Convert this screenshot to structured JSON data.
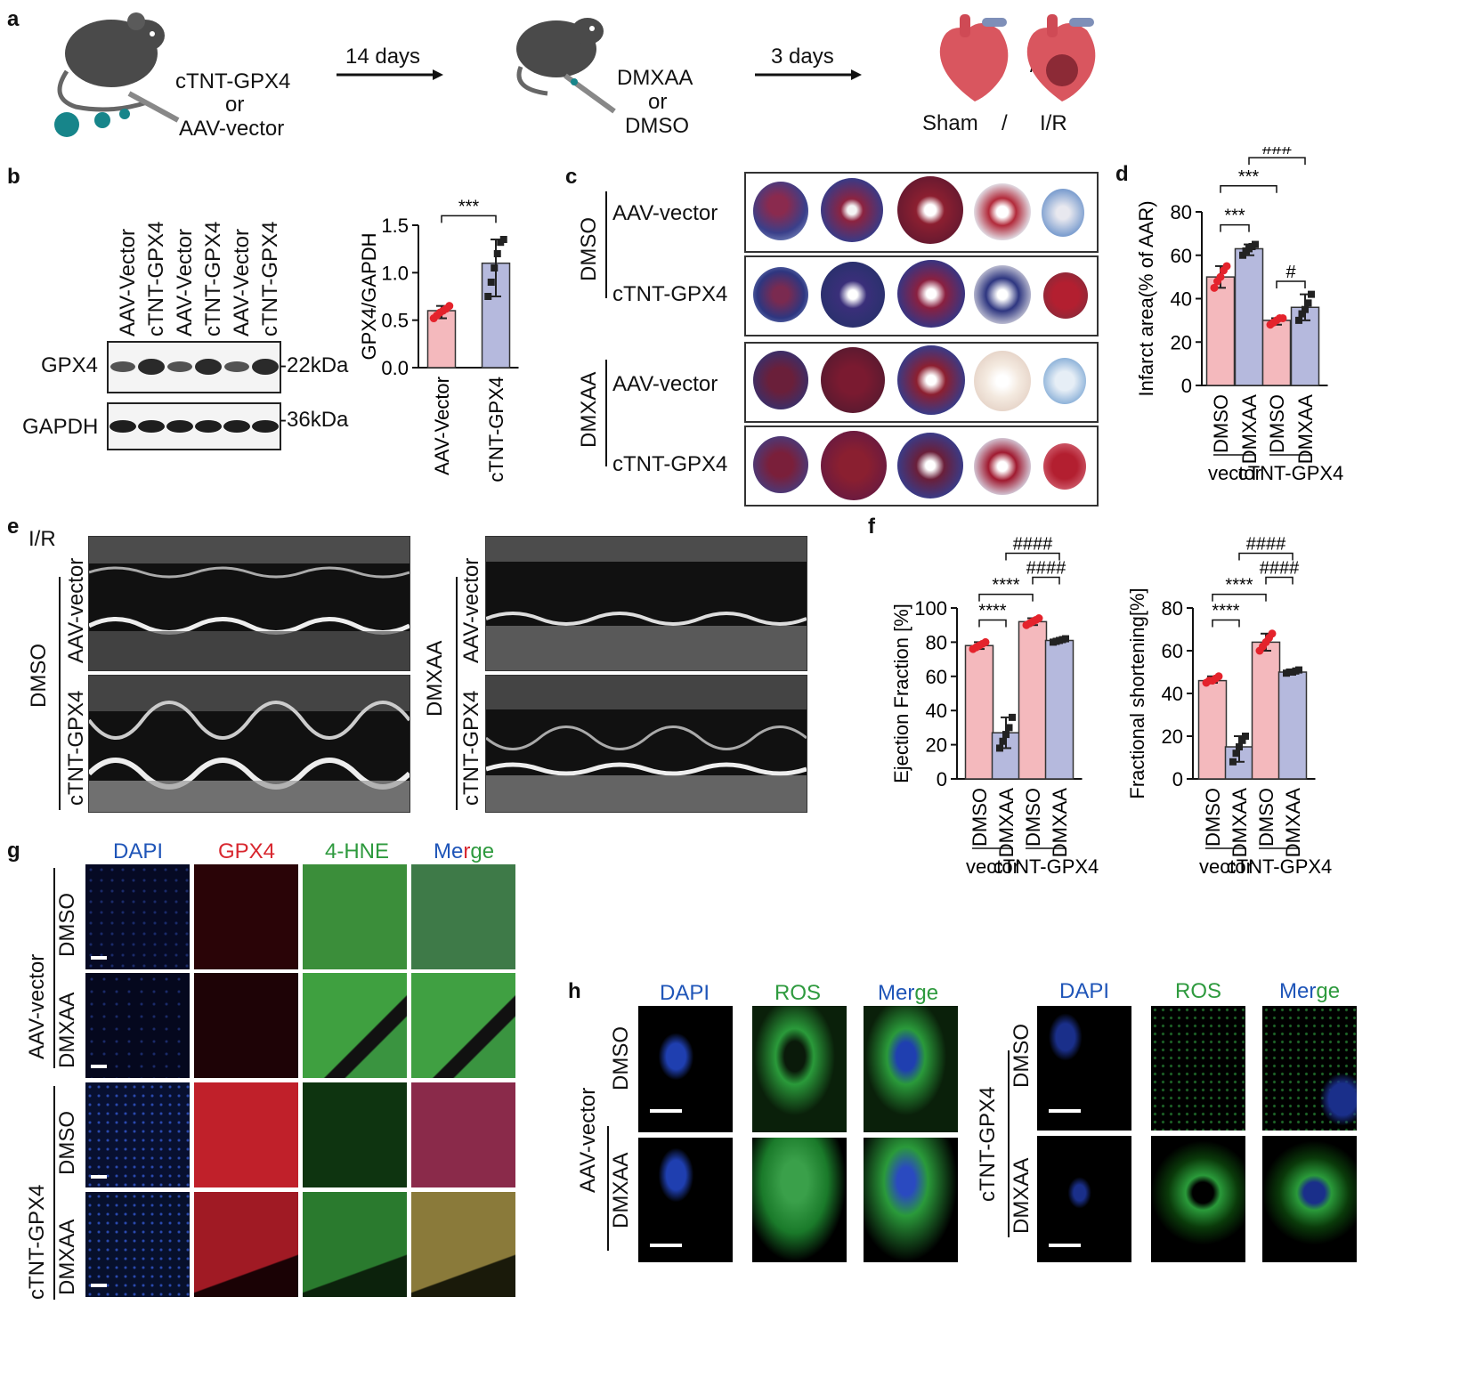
{
  "panel_labels": {
    "a": "a",
    "b": "b",
    "c": "c",
    "d": "d",
    "e": "e",
    "f": "f",
    "g": "g",
    "h": "h"
  },
  "panel_a": {
    "step1_line1": "cTNT-GPX4",
    "step1_line2": "or",
    "step1_line3": "AAV-vector",
    "arrow1": "14 days",
    "step2_line1": "DMXAA",
    "step2_line2": "or",
    "step2_line3": "DMSO",
    "arrow2": "3 days",
    "sham": "Sham",
    "slash": "/",
    "ir": "I/R"
  },
  "panel_b": {
    "lanes": [
      "AAV-Vector",
      "cTNT-GPX4",
      "AAV-Vector",
      "cTNT-GPX4",
      "AAV-Vector",
      "cTNT-GPX4"
    ],
    "row1": "GPX4",
    "row1_kda": "-22kDa",
    "row2": "GAPDH",
    "row2_kda": "-36kDa"
  },
  "panel_c": {
    "group1": "DMSO",
    "group2": "DMXAA",
    "rows": [
      "AAV-vector",
      "cTNT-GPX4",
      "AAV-vector",
      "cTNT-GPX4"
    ]
  },
  "panel_e": {
    "ir": "I/R",
    "left_group": "DMSO",
    "right_group": "DMXAA",
    "row_top": "AAV-vector",
    "row_bottom": "cTNT-GPX4"
  },
  "panel_g": {
    "channels": [
      "DAPI",
      "GPX4",
      "4-HNE",
      "Merge"
    ],
    "groups": [
      "AAV-vector",
      "cTNT-GPX4"
    ],
    "treatments": [
      "DMSO",
      "DMXAA"
    ]
  },
  "panel_h": {
    "channels": [
      "DAPI",
      "ROS",
      "Merge"
    ],
    "groups": [
      "AAV-vector",
      "cTNT-GPX4"
    ],
    "treatments": [
      "DMSO",
      "DMXAA"
    ]
  },
  "colors": {
    "red_bar": "#f4b9bd",
    "blue_bar": "#b5b9dd",
    "red_dot": "#e4232c",
    "black_dot": "#222222",
    "dapi": "#1f55b8",
    "gpx4": "#d8262e",
    "green": "#2e9a3e"
  },
  "chart_data": [
    {
      "id": "b",
      "type": "bar",
      "categories": [
        "AAV-Vector",
        "cTNT-GPX4"
      ],
      "values": [
        0.6,
        1.1
      ],
      "points": [
        [
          0.52,
          0.55,
          0.58,
          0.6,
          0.62,
          0.65
        ],
        [
          0.75,
          0.9,
          1.05,
          1.2,
          1.32,
          1.35
        ]
      ],
      "ylabel": "GPX4/GAPDH",
      "ylim": [
        0,
        1.5
      ],
      "yticks": [
        "0.0",
        "0.5",
        "1.0",
        "1.5"
      ],
      "sig": [
        "***"
      ]
    },
    {
      "id": "d",
      "type": "bar",
      "categories": [
        "DMSO",
        "DMXAA",
        "DMSO",
        "DMXAA"
      ],
      "groups": [
        "vector",
        "cTNT-GPX4"
      ],
      "values": [
        50,
        63,
        30,
        36
      ],
      "points": [
        [
          45,
          48,
          50,
          53,
          55
        ],
        [
          60,
          62,
          63,
          64,
          65
        ],
        [
          28,
          29,
          30,
          31,
          31
        ],
        [
          30,
          33,
          35,
          38,
          42
        ]
      ],
      "ylabel": "Infarct area(% of AAR)",
      "ylim": [
        0,
        80
      ],
      "yticks": [
        "0",
        "20",
        "40",
        "60",
        "80"
      ],
      "sig": [
        "###",
        "***",
        "***",
        "#"
      ]
    },
    {
      "id": "f1",
      "type": "bar",
      "categories": [
        "DMSO",
        "DMXAA",
        "DMSO",
        "DMXAA"
      ],
      "groups": [
        "vector",
        "cTNT-GPX4"
      ],
      "values": [
        78,
        27,
        92,
        81
      ],
      "points": [
        [
          76,
          77,
          78,
          79,
          80
        ],
        [
          18,
          22,
          26,
          30,
          36
        ],
        [
          90,
          91,
          92,
          93,
          94
        ],
        [
          80,
          80.5,
          81,
          81.5,
          82
        ]
      ],
      "ylabel": "Ejection Fraction [%]",
      "ylim": [
        0,
        100
      ],
      "yticks": [
        "0",
        "20",
        "40",
        "60",
        "80",
        "100"
      ],
      "sig": [
        "####",
        "####",
        "****",
        "****"
      ]
    },
    {
      "id": "f2",
      "type": "bar",
      "categories": [
        "DMSO",
        "DMXAA",
        "DMSO",
        "DMXAA"
      ],
      "groups": [
        "vector",
        "cTNT-GPX4"
      ],
      "values": [
        46,
        15,
        64,
        50
      ],
      "points": [
        [
          45,
          46,
          46,
          47,
          48
        ],
        [
          8,
          12,
          15,
          18,
          20
        ],
        [
          60,
          62,
          64,
          66,
          68
        ],
        [
          49.5,
          50,
          50,
          50.5,
          51
        ]
      ],
      "ylabel": "Fractional shortening[%]",
      "ylim": [
        0,
        80
      ],
      "yticks": [
        "0",
        "20",
        "40",
        "60",
        "80"
      ],
      "sig": [
        "####",
        "####",
        "****",
        "****"
      ]
    }
  ]
}
